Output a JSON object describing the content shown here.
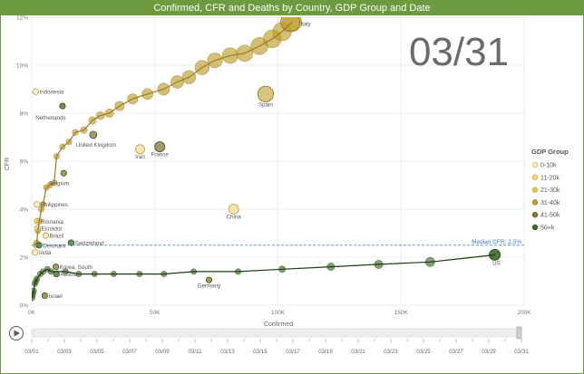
{
  "title": "Confirmed, CFR and Deaths by Country, GDP Group and Date",
  "date_display": "03/31",
  "legend": {
    "title": "GDP Group",
    "items": [
      {
        "label": "0-10k",
        "color": "#f6e8a6"
      },
      {
        "label": "11-20k",
        "color": "#efd873"
      },
      {
        "label": "21-30k",
        "color": "#e2c444"
      },
      {
        "label": "31-40k",
        "color": "#bf9c2a"
      },
      {
        "label": "41-50k",
        "color": "#7d7a3a"
      },
      {
        "label": "50+k",
        "color": "#3f6a2a"
      }
    ]
  },
  "median_label": "Median CFR: 2.5%",
  "timeline": {
    "labels": [
      "03/01",
      "03/03",
      "03/05",
      "03/07",
      "03/09",
      "03/11",
      "03/13",
      "03/15",
      "03/17",
      "03/19",
      "03/21",
      "03/23",
      "03/25",
      "03/27",
      "03/29",
      "03/31"
    ]
  },
  "chart_data": {
    "type": "scatter",
    "title": "Confirmed, CFR and Deaths by Country, GDP Group and Date",
    "xlabel": "Confirmed",
    "ylabel": "CFR",
    "xlim": [
      0,
      200000
    ],
    "ylim": [
      0,
      12
    ],
    "x_ticks": [
      "0K",
      "50K",
      "100K",
      "150K",
      "200K"
    ],
    "y_ticks": [
      "0%",
      "2%",
      "4%",
      "6%",
      "8%",
      "10%",
      "12%"
    ],
    "median_cfr": 2.5,
    "grid": true,
    "legend_position": "right",
    "labeled_points": [
      {
        "name": "US",
        "x": 188000,
        "y": 2.1,
        "gdp_group": "50+k"
      },
      {
        "name": "Italy",
        "x": 105000,
        "y": 11.8,
        "gdp_group": "31-40k"
      },
      {
        "name": "Spain",
        "x": 95000,
        "y": 8.8,
        "gdp_group": "31-40k"
      },
      {
        "name": "China",
        "x": 82000,
        "y": 4.0,
        "gdp_group": "11-20k"
      },
      {
        "name": "Germany",
        "x": 72000,
        "y": 1.05,
        "gdp_group": "41-50k"
      },
      {
        "name": "France",
        "x": 52000,
        "y": 6.6,
        "gdp_group": "41-50k"
      },
      {
        "name": "Iran",
        "x": 44000,
        "y": 6.5,
        "gdp_group": "11-20k"
      },
      {
        "name": "United Kingdom",
        "x": 25000,
        "y": 7.1,
        "gdp_group": "41-50k"
      },
      {
        "name": "Netherlands",
        "x": 12500,
        "y": 8.3,
        "gdp_group": "50+k"
      },
      {
        "name": "Indonesia",
        "x": 1600,
        "y": 8.9,
        "gdp_group": "0-10k"
      },
      {
        "name": "Belgium",
        "x": 13000,
        "y": 5.5,
        "gdp_group": "41-50k"
      },
      {
        "name": "Philippines",
        "x": 2100,
        "y": 4.2,
        "gdp_group": "0-10k"
      },
      {
        "name": "Romania",
        "x": 2200,
        "y": 3.5,
        "gdp_group": "21-30k"
      },
      {
        "name": "Ecuador",
        "x": 2300,
        "y": 3.2,
        "gdp_group": "11-20k"
      },
      {
        "name": "Brazil",
        "x": 5700,
        "y": 2.9,
        "gdp_group": "11-20k"
      },
      {
        "name": "Denmark",
        "x": 3000,
        "y": 2.5,
        "gdp_group": "50+k"
      },
      {
        "name": "Switzerland",
        "x": 16000,
        "y": 2.6,
        "gdp_group": "50+k"
      },
      {
        "name": "India",
        "x": 1400,
        "y": 2.2,
        "gdp_group": "0-10k"
      },
      {
        "name": "Korea, South",
        "x": 9800,
        "y": 1.6,
        "gdp_group": "41-50k"
      },
      {
        "name": "Austria",
        "x": 10000,
        "y": 1.3,
        "gdp_group": "50+k"
      },
      {
        "name": "Israel",
        "x": 5300,
        "y": 0.4,
        "gdp_group": "41-50k"
      }
    ],
    "trails": [
      {
        "name": "Italy",
        "gdp_group": "31-40k",
        "points": [
          [
            1700,
            2.5
          ],
          [
            2000,
            2.6
          ],
          [
            2500,
            3.1
          ],
          [
            3100,
            3.5
          ],
          [
            3900,
            4.0
          ],
          [
            4600,
            4.2
          ],
          [
            5900,
            4.9
          ],
          [
            7400,
            5.0
          ],
          [
            9100,
            5.1
          ],
          [
            10100,
            6.2
          ],
          [
            12500,
            6.6
          ],
          [
            15100,
            6.8
          ],
          [
            17700,
            7.2
          ],
          [
            21200,
            7.3
          ],
          [
            24700,
            7.7
          ],
          [
            27900,
            7.9
          ],
          [
            31500,
            8.0
          ],
          [
            35700,
            8.3
          ],
          [
            41000,
            8.6
          ],
          [
            47000,
            8.8
          ],
          [
            53600,
            9.0
          ],
          [
            59100,
            9.3
          ],
          [
            63900,
            9.5
          ],
          [
            69200,
            9.9
          ],
          [
            74400,
            10.2
          ],
          [
            80600,
            10.4
          ],
          [
            86500,
            10.5
          ],
          [
            92500,
            10.8
          ],
          [
            97700,
            11.1
          ],
          [
            101700,
            11.4
          ],
          [
            105800,
            11.8
          ]
        ]
      },
      {
        "name": "US",
        "gdp_group": "50+k",
        "points": [
          [
            100,
            0.3
          ],
          [
            300,
            0.4
          ],
          [
            500,
            0.5
          ],
          [
            800,
            0.6
          ],
          [
            1300,
            0.9
          ],
          [
            1700,
            1.0
          ],
          [
            2100,
            1.1
          ],
          [
            3500,
            1.3
          ],
          [
            4600,
            1.4
          ],
          [
            6400,
            1.5
          ],
          [
            7800,
            1.4
          ],
          [
            13700,
            1.4
          ],
          [
            19100,
            1.3
          ],
          [
            25500,
            1.3
          ],
          [
            33300,
            1.3
          ],
          [
            43800,
            1.3
          ],
          [
            53700,
            1.3
          ],
          [
            65800,
            1.4
          ],
          [
            83800,
            1.4
          ],
          [
            101700,
            1.5
          ],
          [
            121500,
            1.6
          ],
          [
            140900,
            1.7
          ],
          [
            161800,
            1.8
          ],
          [
            188200,
            2.1
          ]
        ]
      }
    ]
  }
}
